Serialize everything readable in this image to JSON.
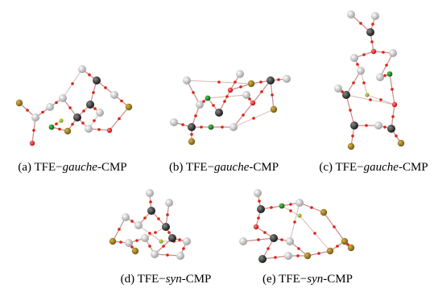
{
  "captions": [
    {
      "prefix": "(a) TFE−",
      "italic": "gauche",
      "suffix": "-CMP"
    },
    {
      "prefix": "(b) TFE−",
      "italic": "gauche",
      "suffix": "-CMP"
    },
    {
      "prefix": "(c) TFE−",
      "italic": "gauche",
      "suffix": "-CMP"
    },
    {
      "prefix": "(d) TFE−",
      "italic": "syn",
      "suffix": "-CMP"
    },
    {
      "prefix": "(e) TFE−",
      "italic": "syn",
      "suffix": "-CMP"
    }
  ]
}
